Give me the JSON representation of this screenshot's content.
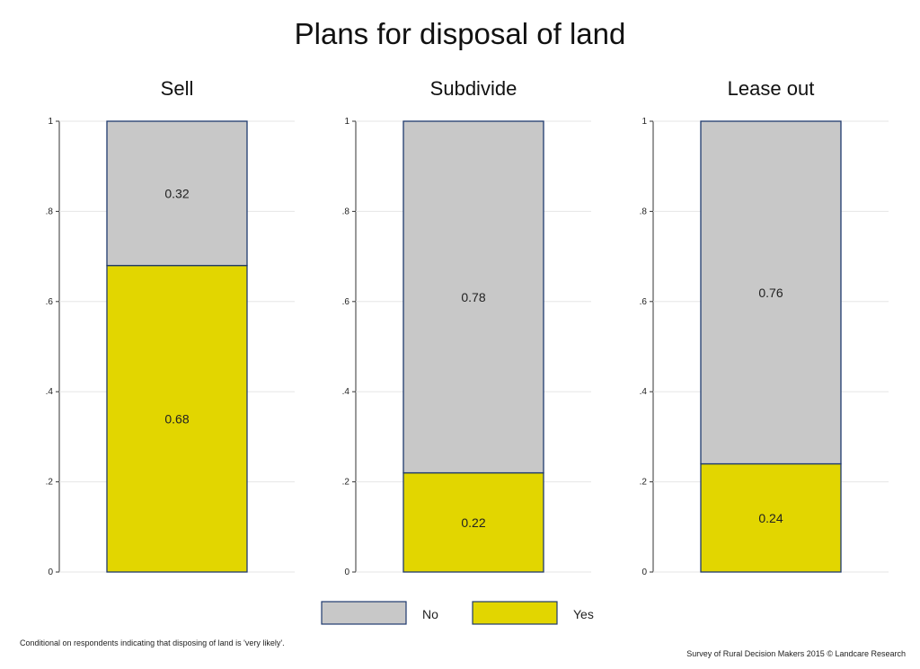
{
  "chart_data": {
    "type": "bar",
    "stacked": true,
    "title": "Plans for disposal of land",
    "panels": [
      {
        "subtitle": "Sell",
        "series": [
          {
            "name": "Yes",
            "value": 0.68,
            "label": "0.68"
          },
          {
            "name": "No",
            "value": 0.32,
            "label": "0.32"
          }
        ]
      },
      {
        "subtitle": "Subdivide",
        "series": [
          {
            "name": "Yes",
            "value": 0.22,
            "label": "0.22"
          },
          {
            "name": "No",
            "value": 0.78,
            "label": "0.78"
          }
        ]
      },
      {
        "subtitle": "Lease out",
        "series": [
          {
            "name": "Yes",
            "value": 0.24,
            "label": "0.24"
          },
          {
            "name": "No",
            "value": 0.76,
            "label": "0.76"
          }
        ]
      }
    ],
    "ylim": [
      0,
      1
    ],
    "yticks": [
      0,
      0.2,
      0.4,
      0.6,
      0.8,
      1
    ],
    "ytick_labels": [
      "0",
      ".2",
      ".4",
      ".6",
      ".8",
      "1"
    ],
    "grid": true,
    "legend": {
      "placement": "bottom",
      "entries": [
        {
          "name": "No",
          "color": "#c8c8c8"
        },
        {
          "name": "Yes",
          "color": "#e2d600"
        }
      ]
    },
    "colors": {
      "Yes": "#e2d600",
      "No": "#c8c8c8",
      "outline": "#1f3a6e"
    }
  },
  "notes": {
    "left": "Conditional on respondents indicating that disposing of land is 'very likely'.",
    "right": "Survey of Rural Decision Makers 2015 © Landcare Research"
  }
}
